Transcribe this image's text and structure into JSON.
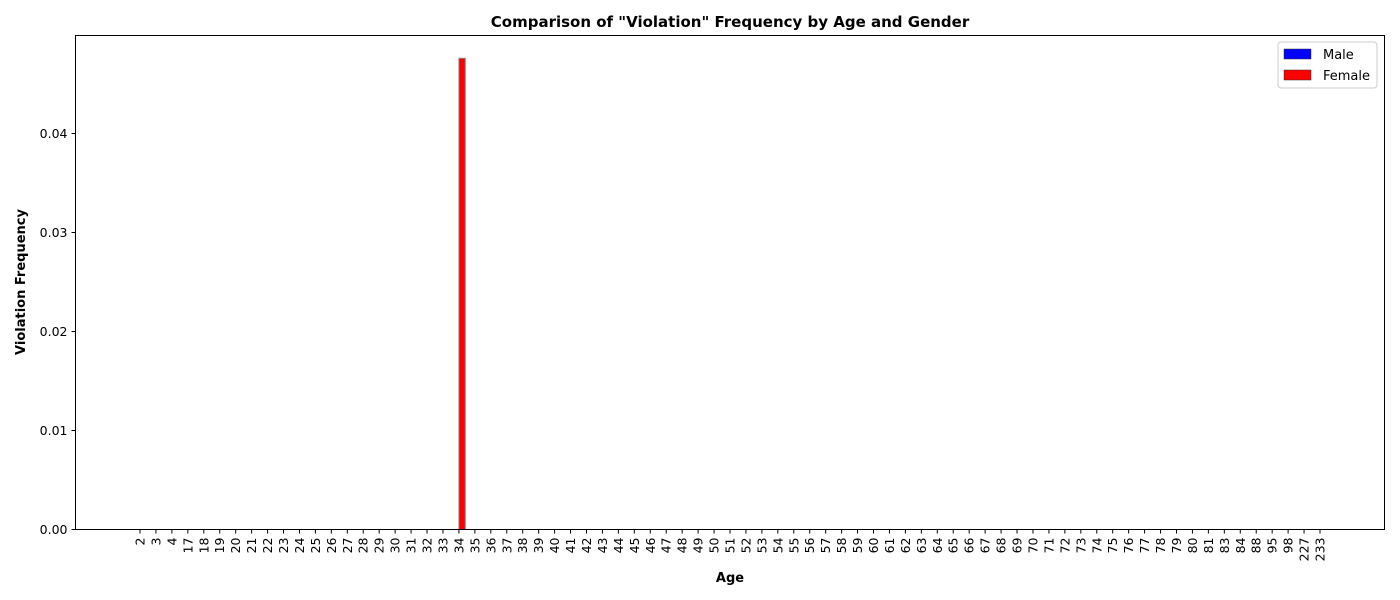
{
  "chart_data": {
    "type": "bar",
    "title": "Comparison of \"Violation\" Frequency by Age and Gender",
    "xlabel": "Age",
    "ylabel": "Violation Frequency",
    "ylim": [
      0,
      0.0499
    ],
    "yticks": [
      "0.00",
      "0.01",
      "0.02",
      "0.03",
      "0.04"
    ],
    "ytick_values": [
      0,
      0.01,
      0.02,
      0.03,
      0.04
    ],
    "grid": false,
    "legend_position": "top-right",
    "categories": [
      "2",
      "3",
      "4",
      "17",
      "18",
      "19",
      "20",
      "21",
      "22",
      "23",
      "24",
      "25",
      "26",
      "27",
      "28",
      "29",
      "30",
      "31",
      "32",
      "33",
      "34",
      "35",
      "36",
      "37",
      "38",
      "39",
      "40",
      "41",
      "42",
      "43",
      "44",
      "45",
      "46",
      "47",
      "48",
      "49",
      "50",
      "51",
      "52",
      "53",
      "54",
      "55",
      "56",
      "57",
      "58",
      "59",
      "60",
      "61",
      "62",
      "63",
      "64",
      "65",
      "66",
      "67",
      "68",
      "69",
      "70",
      "71",
      "72",
      "73",
      "74",
      "75",
      "76",
      "77",
      "78",
      "79",
      "80",
      "81",
      "83",
      "84",
      "88",
      "95",
      "98",
      "227",
      "233"
    ],
    "series": [
      {
        "name": "Male",
        "color": "#0000ff",
        "values": [
          0,
          0,
          0,
          0,
          0,
          0,
          0,
          0,
          0,
          0,
          0,
          0,
          0,
          0,
          0,
          0,
          0,
          0,
          0,
          0,
          0,
          0,
          0,
          0,
          0,
          0,
          0,
          0,
          0,
          0,
          0,
          0,
          0,
          0,
          0,
          0,
          0,
          0,
          0,
          0,
          0,
          0,
          0,
          0,
          0,
          0,
          0,
          0,
          0,
          0,
          0,
          0,
          0,
          0,
          0,
          0,
          0,
          0,
          0,
          0,
          0,
          0,
          0,
          0,
          0,
          0,
          0,
          0,
          0,
          0,
          0,
          0,
          0,
          0,
          0
        ]
      },
      {
        "name": "Female",
        "color": "#ff0000",
        "values": [
          0,
          0,
          0,
          0,
          0,
          0,
          0,
          0,
          0,
          0,
          0,
          0,
          0,
          0,
          0,
          0,
          0,
          0,
          0,
          0,
          0.0476,
          0,
          0,
          0,
          0,
          0,
          0,
          0,
          0,
          0,
          0,
          0,
          0,
          0,
          0,
          0,
          0,
          0,
          0,
          0,
          0,
          0,
          0,
          0,
          0,
          0,
          0,
          0,
          0,
          0,
          0,
          0,
          0,
          0,
          0,
          0,
          0,
          0,
          0,
          0,
          0,
          0,
          0,
          0,
          0,
          0,
          0,
          0,
          0,
          0,
          0,
          0,
          0,
          0,
          0
        ]
      }
    ]
  }
}
